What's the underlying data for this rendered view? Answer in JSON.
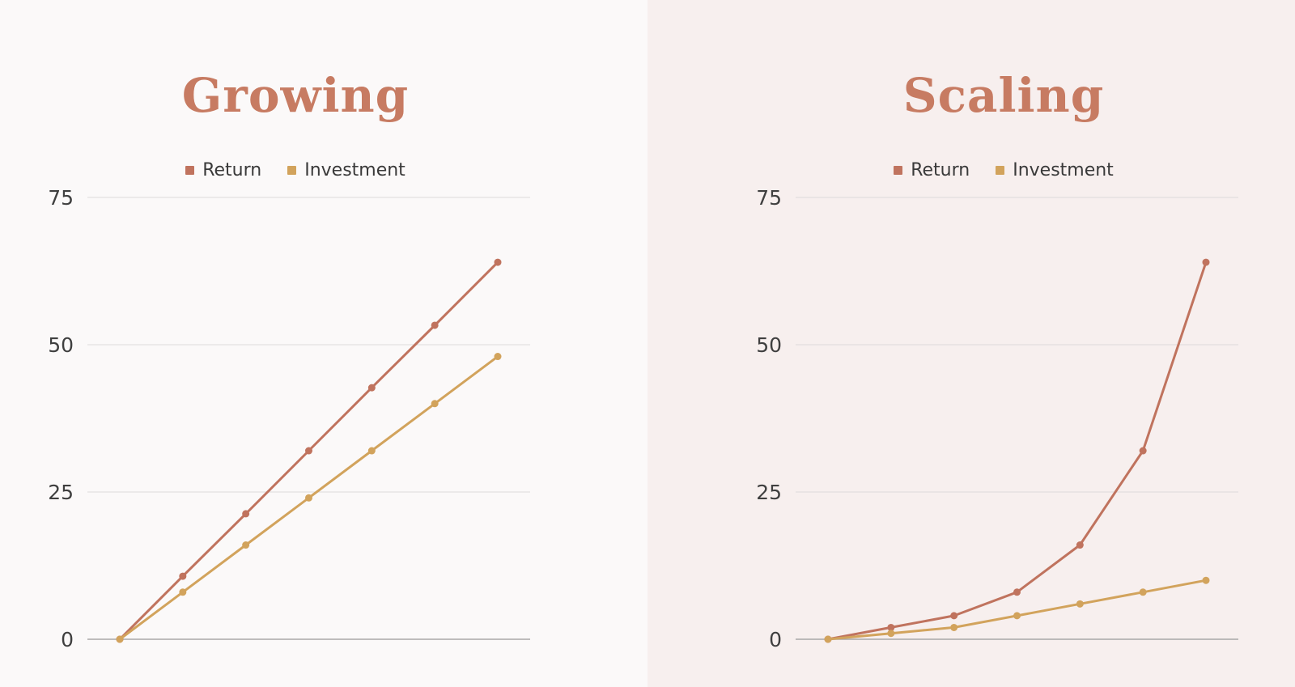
{
  "colors": {
    "background_left": "#fbf9f9",
    "background_right": "#f7efee",
    "title": "#c77b62",
    "return_series": "#c0735e",
    "investment_series": "#d2a35c",
    "gridline": "#dcdada",
    "axis_line": "#a9a7a7",
    "tick_label": "#3f3f3f",
    "legend_text": "#3a3a3a"
  },
  "chart_data": [
    {
      "type": "line",
      "title": "Growing",
      "series": [
        {
          "name": "Return",
          "color": "#c0735e",
          "values": [
            0,
            10.7,
            21.3,
            32,
            42.7,
            53.3,
            64
          ]
        },
        {
          "name": "Investment",
          "color": "#d2a35c",
          "values": [
            0,
            8,
            16,
            24,
            32,
            40,
            48
          ]
        }
      ],
      "ylim": [
        0,
        75
      ],
      "y_ticks": [
        75,
        50,
        25,
        0
      ],
      "grid": "horizontal-only",
      "x_axis_labels": "hidden",
      "legend_position": "top",
      "markers": "circle"
    },
    {
      "type": "line",
      "title": "Scaling",
      "series": [
        {
          "name": "Return",
          "color": "#c0735e",
          "values": [
            0,
            2,
            4,
            8,
            16,
            32,
            64
          ]
        },
        {
          "name": "Investment",
          "color": "#d2a35c",
          "values": [
            0,
            1,
            2,
            4,
            6,
            8,
            10
          ]
        }
      ],
      "ylim": [
        0,
        75
      ],
      "y_ticks": [
        75,
        50,
        25,
        0
      ],
      "grid": "horizontal-only",
      "x_axis_labels": "hidden",
      "legend_position": "top",
      "markers": "circle"
    }
  ]
}
